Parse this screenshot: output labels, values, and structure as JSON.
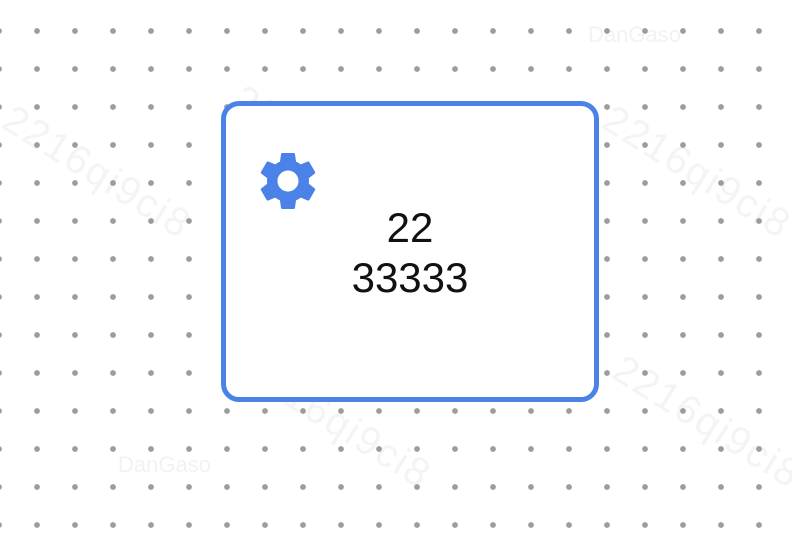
{
  "canvas": {
    "background": "#ffffff",
    "dot_color": "#9c9c9c",
    "grid": "dotted"
  },
  "watermark": {
    "text": "2216qi9ci8",
    "small_text": "DanGaso"
  },
  "node": {
    "icon": "gear-icon",
    "border_color": "#4a82e8",
    "line1": "22",
    "line2": "33333"
  }
}
